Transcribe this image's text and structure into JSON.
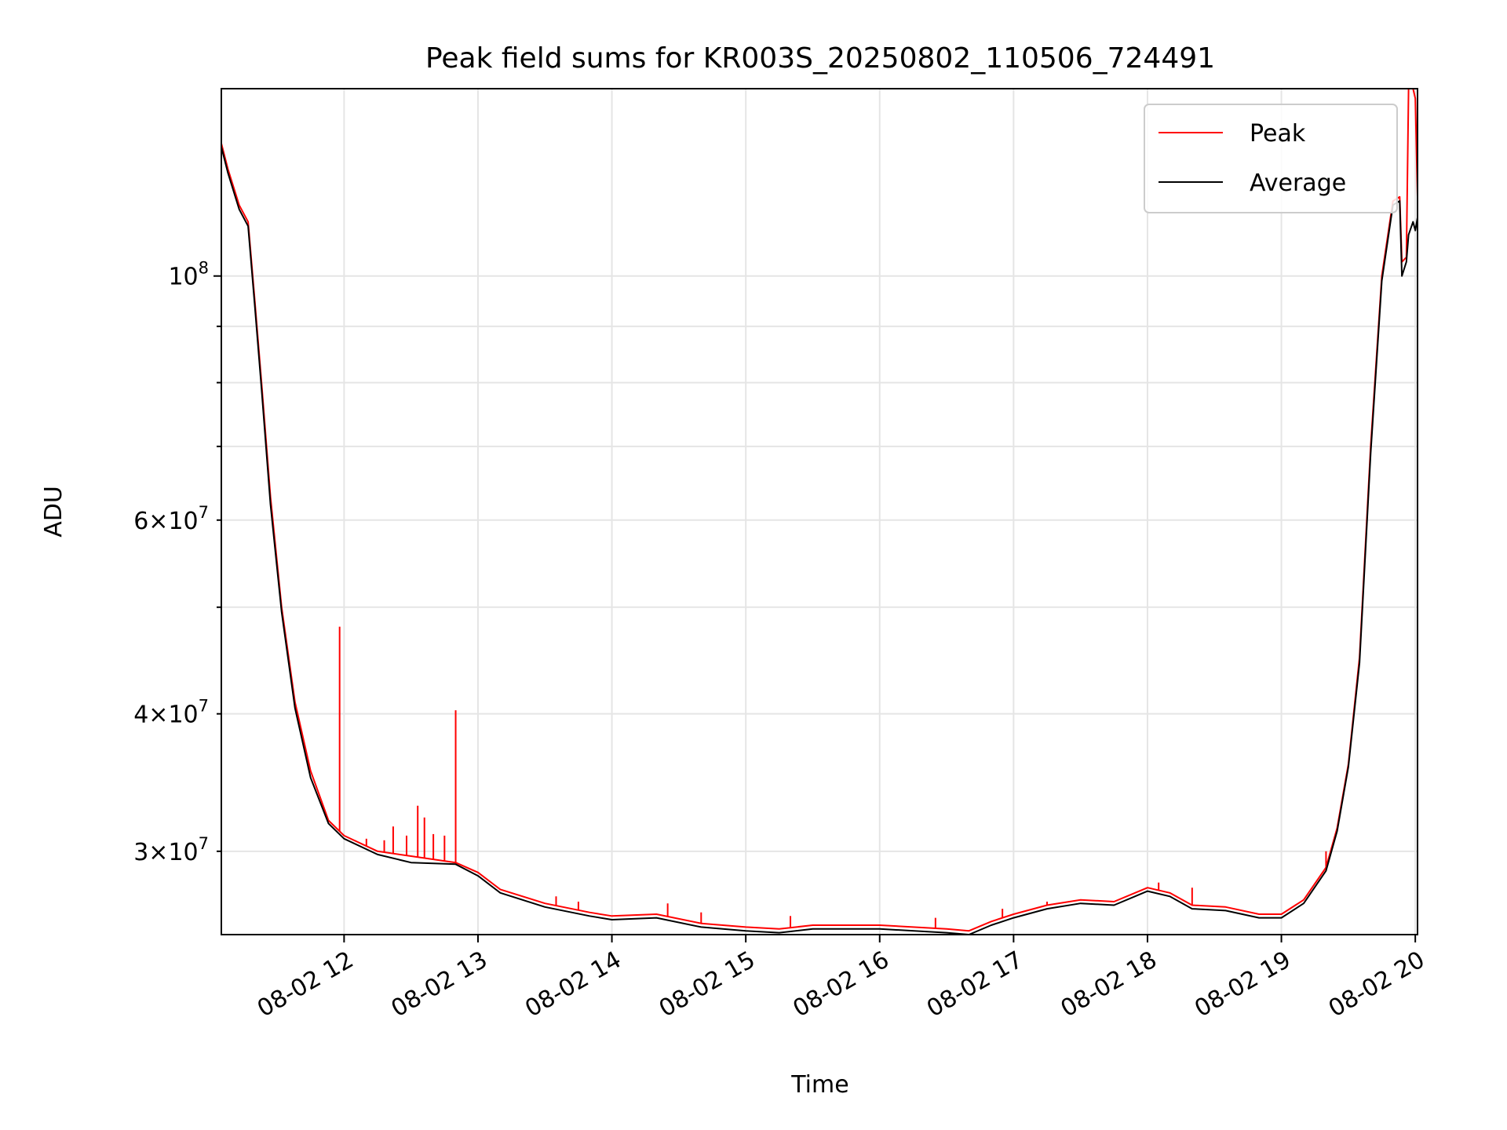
{
  "chart_data": {
    "type": "line",
    "title": "Peak field sums for KR003S_20250802_110506_724491",
    "xlabel": "Time",
    "ylabel": "ADU",
    "yscale": "log",
    "grid": true,
    "legend_position": "top-right",
    "xlim": [
      "08-02 11:05",
      "08-02 20:01"
    ],
    "ylim": [
      25200000,
      148000000
    ],
    "x_ticks": [
      "08-02 12",
      "08-02 13",
      "08-02 14",
      "08-02 15",
      "08-02 16",
      "08-02 17",
      "08-02 18",
      "08-02 19",
      "08-02 20"
    ],
    "y_ticks_major": [
      {
        "value": 100000000,
        "base": "10",
        "exp": "8"
      }
    ],
    "y_ticks_minor": [
      {
        "value": 30000000,
        "mant": "3",
        "base": "10",
        "exp": "7"
      },
      {
        "value": 40000000,
        "mant": "4",
        "base": "10",
        "exp": "7"
      },
      {
        "value": 60000000,
        "mant": "6",
        "base": "10",
        "exp": "7"
      }
    ],
    "y_ticks_minor_unlabeled": [
      50000000,
      70000000,
      80000000,
      90000000
    ],
    "series": [
      {
        "name": "Peak",
        "color": "#ff0000",
        "points": [
          [
            "08-02 11:05",
            132000000
          ],
          [
            "08-02 11:08",
            125000000
          ],
          [
            "08-02 11:13",
            116000000
          ],
          [
            "08-02 11:17",
            112000000
          ],
          [
            "08-02 11:20",
            95000000
          ],
          [
            "08-02 11:23",
            80000000
          ],
          [
            "08-02 11:27",
            63000000
          ],
          [
            "08-02 11:32",
            50000000
          ],
          [
            "08-02 11:38",
            41000000
          ],
          [
            "08-02 11:45",
            35500000
          ],
          [
            "08-02 11:53",
            32000000
          ],
          [
            "08-02 12:00",
            31000000
          ],
          [
            "08-02 12:15",
            30000000
          ],
          [
            "08-02 12:30",
            29700000
          ],
          [
            "08-02 12:50",
            29300000
          ],
          [
            "08-02 13:00",
            28700000
          ],
          [
            "08-02 13:10",
            27700000
          ],
          [
            "08-02 13:30",
            26900000
          ],
          [
            "08-02 13:50",
            26400000
          ],
          [
            "08-02 14:00",
            26200000
          ],
          [
            "08-02 14:20",
            26300000
          ],
          [
            "08-02 14:40",
            25800000
          ],
          [
            "08-02 15:00",
            25600000
          ],
          [
            "08-02 15:15",
            25500000
          ],
          [
            "08-02 15:30",
            25700000
          ],
          [
            "08-02 16:00",
            25700000
          ],
          [
            "08-02 16:30",
            25500000
          ],
          [
            "08-02 16:40",
            25400000
          ],
          [
            "08-02 16:50",
            25900000
          ],
          [
            "08-02 17:00",
            26300000
          ],
          [
            "08-02 17:15",
            26800000
          ],
          [
            "08-02 17:30",
            27100000
          ],
          [
            "08-02 17:45",
            27000000
          ],
          [
            "08-02 18:00",
            27800000
          ],
          [
            "08-02 18:10",
            27500000
          ],
          [
            "08-02 18:20",
            26800000
          ],
          [
            "08-02 18:35",
            26700000
          ],
          [
            "08-02 18:50",
            26300000
          ],
          [
            "08-02 19:00",
            26300000
          ],
          [
            "08-02 19:10",
            27100000
          ],
          [
            "08-02 19:20",
            29000000
          ],
          [
            "08-02 19:25",
            31500000
          ],
          [
            "08-02 19:30",
            36000000
          ],
          [
            "08-02 19:35",
            45000000
          ],
          [
            "08-02 19:40",
            70000000
          ],
          [
            "08-02 19:45",
            100000000
          ],
          [
            "08-02 19:50",
            117000000
          ],
          [
            "08-02 19:53",
            118000000
          ],
          [
            "08-02 19:54",
            103000000
          ],
          [
            "08-02 19:56",
            104000000
          ],
          [
            "08-02 19:57",
            148000000
          ],
          [
            "08-02 19:59",
            148000000
          ],
          [
            "08-02 20:00",
            145000000
          ],
          [
            "08-02 20:01",
            118000000
          ]
        ],
        "spikes": [
          [
            "08-02 11:05",
            140000000
          ],
          [
            "08-02 11:58",
            48000000
          ],
          [
            "08-02 12:05",
            30700000
          ],
          [
            "08-02 12:10",
            30800000
          ],
          [
            "08-02 12:18",
            30700000
          ],
          [
            "08-02 12:22",
            31600000
          ],
          [
            "08-02 12:28",
            31000000
          ],
          [
            "08-02 12:33",
            33000000
          ],
          [
            "08-02 12:36",
            32200000
          ],
          [
            "08-02 12:40",
            31100000
          ],
          [
            "08-02 12:45",
            31000000
          ],
          [
            "08-02 12:50",
            40300000
          ],
          [
            "08-02 13:35",
            27300000
          ],
          [
            "08-02 13:45",
            27000000
          ],
          [
            "08-02 14:25",
            26900000
          ],
          [
            "08-02 14:40",
            26400000
          ],
          [
            "08-02 15:20",
            26200000
          ],
          [
            "08-02 16:25",
            26100000
          ],
          [
            "08-02 16:55",
            26600000
          ],
          [
            "08-02 17:15",
            27000000
          ],
          [
            "08-02 18:05",
            28100000
          ],
          [
            "08-02 18:20",
            27800000
          ],
          [
            "08-02 19:20",
            30000000
          ]
        ]
      },
      {
        "name": "Average",
        "color": "#000000",
        "points": [
          [
            "08-02 11:05",
            131000000
          ],
          [
            "08-02 11:08",
            124000000
          ],
          [
            "08-02 11:13",
            115000000
          ],
          [
            "08-02 11:17",
            111000000
          ],
          [
            "08-02 11:20",
            94000000
          ],
          [
            "08-02 11:23",
            79000000
          ],
          [
            "08-02 11:27",
            62000000
          ],
          [
            "08-02 11:32",
            49500000
          ],
          [
            "08-02 11:38",
            40500000
          ],
          [
            "08-02 11:45",
            35000000
          ],
          [
            "08-02 11:53",
            31800000
          ],
          [
            "08-02 12:00",
            30800000
          ],
          [
            "08-02 12:15",
            29800000
          ],
          [
            "08-02 12:30",
            29300000
          ],
          [
            "08-02 12:50",
            29200000
          ],
          [
            "08-02 13:00",
            28500000
          ],
          [
            "08-02 13:10",
            27500000
          ],
          [
            "08-02 13:30",
            26700000
          ],
          [
            "08-02 13:50",
            26200000
          ],
          [
            "08-02 14:00",
            26000000
          ],
          [
            "08-02 14:20",
            26100000
          ],
          [
            "08-02 14:40",
            25600000
          ],
          [
            "08-02 15:00",
            25400000
          ],
          [
            "08-02 15:15",
            25300000
          ],
          [
            "08-02 15:30",
            25500000
          ],
          [
            "08-02 16:00",
            25500000
          ],
          [
            "08-02 16:30",
            25300000
          ],
          [
            "08-02 16:40",
            25200000
          ],
          [
            "08-02 16:50",
            25700000
          ],
          [
            "08-02 17:00",
            26100000
          ],
          [
            "08-02 17:15",
            26600000
          ],
          [
            "08-02 17:30",
            26900000
          ],
          [
            "08-02 17:45",
            26800000
          ],
          [
            "08-02 18:00",
            27600000
          ],
          [
            "08-02 18:10",
            27300000
          ],
          [
            "08-02 18:20",
            26600000
          ],
          [
            "08-02 18:35",
            26500000
          ],
          [
            "08-02 18:50",
            26100000
          ],
          [
            "08-02 19:00",
            26100000
          ],
          [
            "08-02 19:10",
            26900000
          ],
          [
            "08-02 19:20",
            28800000
          ],
          [
            "08-02 19:25",
            31300000
          ],
          [
            "08-02 19:30",
            35800000
          ],
          [
            "08-02 19:35",
            44500000
          ],
          [
            "08-02 19:40",
            69000000
          ],
          [
            "08-02 19:45",
            99000000
          ],
          [
            "08-02 19:50",
            116000000
          ],
          [
            "08-02 19:53",
            117000000
          ],
          [
            "08-02 19:54",
            100000000
          ],
          [
            "08-02 19:56",
            103000000
          ],
          [
            "08-02 19:57",
            109000000
          ],
          [
            "08-02 19:59",
            112000000
          ],
          [
            "08-02 20:00",
            110000000
          ],
          [
            "08-02 20:01",
            113000000
          ]
        ]
      }
    ]
  }
}
